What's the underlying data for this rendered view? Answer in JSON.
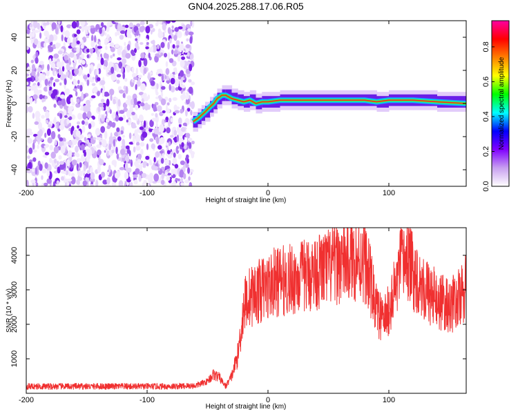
{
  "figure": {
    "title": "GN04.2025.288.17.06.R05"
  },
  "chart_data": [
    {
      "type": "heatmap",
      "xlabel": "Height of straight line (km)",
      "ylabel": "Frequency (Hz)",
      "xlim": [
        -200,
        164
      ],
      "ylim": [
        -50,
        50
      ],
      "xticks": [
        -200,
        -100,
        0,
        100
      ],
      "yticks": [
        -40,
        -20,
        0,
        20,
        40
      ],
      "grid": false,
      "noise_region_x": [
        -200,
        -62
      ],
      "signal_trace": {
        "x": [
          -62,
          -58,
          -55,
          -52,
          -48,
          -45,
          -42,
          -38,
          -35,
          -30,
          -25,
          -20,
          -15,
          -10,
          -5,
          0,
          10,
          20,
          40,
          60,
          80,
          90,
          100,
          120,
          140,
          164
        ],
        "y": [
          -11,
          -9,
          -7,
          -5,
          -2,
          0,
          3,
          5,
          5,
          3,
          2,
          1,
          2,
          0,
          1,
          1,
          2,
          2,
          2,
          2,
          2,
          1,
          2,
          2,
          1,
          0
        ]
      },
      "colorbar": {
        "label": "Normalized spectral amplitude",
        "range": [
          0.0,
          0.95
        ],
        "ticks": [
          "0.0",
          "0.2",
          "0.4",
          "0.6",
          "0.8"
        ],
        "colors": [
          "#ffffff",
          "#c8a0f0",
          "#8000ff",
          "#0000ff",
          "#00ffff",
          "#00ff00",
          "#ffff00",
          "#ff8000",
          "#ff0000",
          "#ff00a0"
        ]
      }
    },
    {
      "type": "line",
      "xlabel": "Height of straight line (km)",
      "ylabel": "SNR (10 * v/v)",
      "xlim": [
        -200,
        164
      ],
      "ylim": [
        0,
        4800
      ],
      "xticks": [
        -200,
        -100,
        0,
        100
      ],
      "yticks": [
        1000,
        2000,
        3000,
        4000
      ],
      "grid": false,
      "color": "#f03030",
      "series": [
        {
          "x": [
            -200,
            -180,
            -160,
            -140,
            -120,
            -100,
            -80,
            -60,
            -50,
            -45,
            -40,
            -35,
            -30,
            -25,
            -22,
            -20,
            -18,
            -15,
            -10,
            -5,
            0,
            5,
            10,
            20,
            30,
            40,
            50,
            60,
            70,
            80,
            85,
            90,
            95,
            100,
            105,
            110,
            115,
            120,
            125,
            130,
            140,
            150,
            160,
            164
          ],
          "y": [
            200,
            200,
            200,
            200,
            200,
            200,
            200,
            220,
            350,
            550,
            450,
            200,
            500,
            1100,
            1900,
            2500,
            2700,
            2800,
            2900,
            3000,
            3100,
            3200,
            3250,
            3300,
            3400,
            3500,
            3650,
            3800,
            3900,
            3850,
            3200,
            2400,
            2100,
            2400,
            3000,
            3700,
            3900,
            3500,
            3300,
            3000,
            2700,
            2500,
            2800,
            3100
          ]
        }
      ]
    }
  ]
}
